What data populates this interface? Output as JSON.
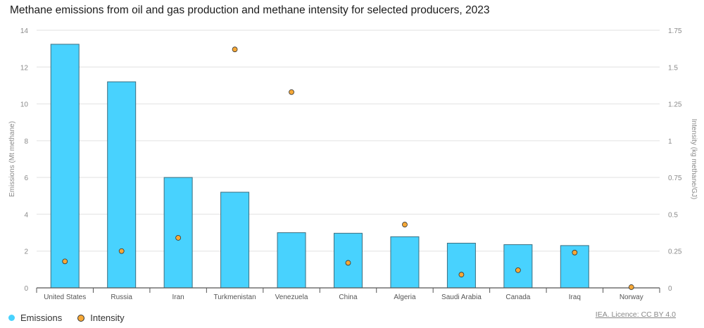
{
  "chart_data": {
    "type": "bar",
    "title": "Methane emissions from oil and gas production and methane intensity for selected producers, 2023",
    "categories": [
      "United States",
      "Russia",
      "Iran",
      "Turkmenistan",
      "Venezuela",
      "China",
      "Algeria",
      "Saudi Arabia",
      "Canada",
      "Iraq",
      "Norway"
    ],
    "series": [
      {
        "name": "Emissions",
        "type": "bar",
        "axis": "left",
        "color": "#48d2fe",
        "values": [
          13.24,
          11.2,
          6.0,
          5.2,
          3.0,
          2.97,
          2.78,
          2.43,
          2.35,
          2.3,
          0
        ]
      },
      {
        "name": "Intensity",
        "type": "scatter",
        "axis": "right",
        "color": "#f6a836",
        "values": [
          0.18,
          0.25,
          0.34,
          1.62,
          1.33,
          0.17,
          0.43,
          0.09,
          0.12,
          0.24,
          0.005
        ]
      }
    ],
    "ylabel": "Emissions (Mt methane)",
    "y2label": "Intensity (kg methane/GJ)",
    "ylim": [
      0,
      14
    ],
    "yticks": [
      "0",
      "2",
      "4",
      "6",
      "8",
      "10",
      "12",
      "14"
    ],
    "y2lim": [
      0,
      1.75
    ],
    "y2ticks": [
      "0",
      "0.25",
      "0.5",
      "0.75",
      "1",
      "1.25",
      "1.5",
      "1.75"
    ],
    "grid": true,
    "legend": "bottom-left"
  },
  "credit": "IEA. Licence: CC BY 4.0"
}
